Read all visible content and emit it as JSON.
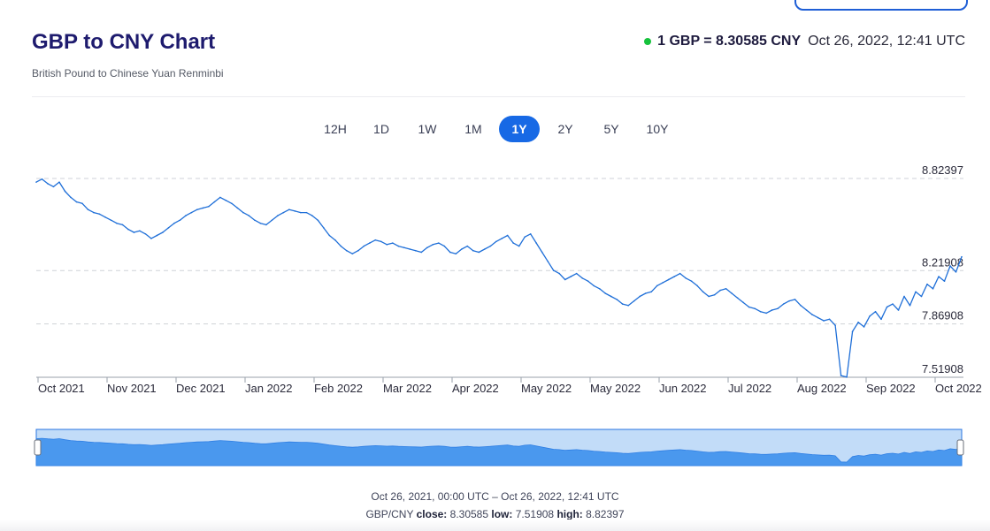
{
  "header": {
    "title": "GBP to CNY Chart",
    "subtitle": "British Pound to Chinese Yuan Renminbi",
    "rate_text": "1 GBP = 8.30585 CNY",
    "rate_time": "Oct 26, 2022, 12:41 UTC"
  },
  "range_tabs": [
    "12H",
    "1D",
    "1W",
    "1M",
    "1Y",
    "2Y",
    "5Y",
    "10Y"
  ],
  "active_range": "1Y",
  "colors": {
    "line": "#1f6fd8",
    "navigator_fill": "#4a98ee",
    "navigator_bg": "#c2dcf8",
    "accent": "#1769e5",
    "live": "#16c23c"
  },
  "footer": {
    "period": "Oct 26, 2021, 00:00 UTC – Oct 26, 2022, 12:41 UTC",
    "pair": "GBP/CNY",
    "close_label": "close:",
    "close": "8.30585",
    "low_label": "low:",
    "low": "7.51908",
    "high_label": "high:",
    "high": "8.82397"
  },
  "chart_data": {
    "type": "line",
    "series": [
      {
        "values": [
          8.8,
          8.82,
          8.79,
          8.77,
          8.8,
          8.74,
          8.7,
          8.67,
          8.66,
          8.62,
          8.6,
          8.59,
          8.57,
          8.55,
          8.53,
          8.52,
          8.49,
          8.47,
          8.48,
          8.46,
          8.43,
          8.45,
          8.47,
          8.5,
          8.53,
          8.55,
          8.58,
          8.6,
          8.62,
          8.63,
          8.64,
          8.67,
          8.7,
          8.68,
          8.66,
          8.63,
          8.6,
          8.58,
          8.55,
          8.53,
          8.52,
          8.55,
          8.58,
          8.6,
          8.62,
          8.61,
          8.6,
          8.6,
          8.58,
          8.55,
          8.5,
          8.45,
          8.42,
          8.38,
          8.35,
          8.33,
          8.35,
          8.38,
          8.4,
          8.42,
          8.41,
          8.39,
          8.4,
          8.38,
          8.37,
          8.36,
          8.35,
          8.34,
          8.37,
          8.39,
          8.4,
          8.38,
          8.34,
          8.33,
          8.36,
          8.38,
          8.35,
          8.34,
          8.36,
          8.38,
          8.41,
          8.43,
          8.45,
          8.4,
          8.38,
          8.44,
          8.46,
          8.4,
          8.34,
          8.28,
          8.22,
          8.2,
          8.16,
          8.18,
          8.2,
          8.17,
          8.15,
          8.12,
          8.1,
          8.07,
          8.05,
          8.03,
          8.0,
          7.99,
          8.02,
          8.05,
          8.07,
          8.08,
          8.12,
          8.14,
          8.16,
          8.18,
          8.2,
          8.17,
          8.15,
          8.12,
          8.08,
          8.05,
          8.06,
          8.09,
          8.1,
          8.07,
          8.04,
          8.01,
          7.98,
          7.97,
          7.95,
          7.94,
          7.96,
          7.97,
          8.0,
          8.02,
          8.03,
          7.99,
          7.96,
          7.93,
          7.91,
          7.89,
          7.9,
          7.86,
          7.53,
          7.52,
          7.82,
          7.88,
          7.85,
          7.92,
          7.95,
          7.9,
          7.98,
          8.0,
          7.96,
          8.05,
          7.99,
          8.08,
          8.05,
          8.13,
          8.1,
          8.18,
          8.15,
          8.25,
          8.21,
          8.31
        ]
      }
    ],
    "x_labels": [
      "Oct 2021",
      "Nov 2021",
      "Dec 2021",
      "Jan 2022",
      "Feb 2022",
      "Mar 2022",
      "Apr 2022",
      "May 2022",
      "May 2022",
      "Jun 2022",
      "Jul 2022",
      "Aug 2022",
      "Sep 2022",
      "Oct 2022"
    ],
    "y_ticks": [
      7.51908,
      7.86908,
      8.21908,
      8.82397
    ],
    "y_tick_labels": [
      "7.51908",
      "7.86908",
      "8.21908",
      "8.82397"
    ],
    "ylim": [
      7.51908,
      8.82397
    ],
    "grid": true,
    "navigator": true
  }
}
